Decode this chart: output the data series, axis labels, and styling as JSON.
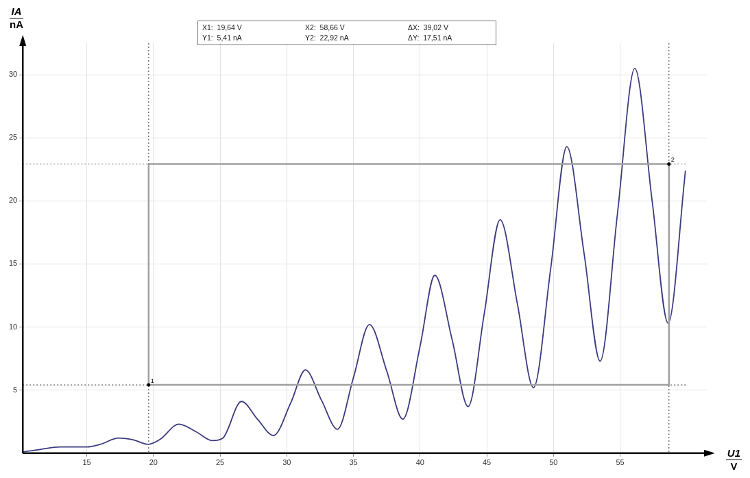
{
  "chart_data": {
    "type": "line",
    "xlabel": "U1\nV",
    "ylabel": "IA\nnA",
    "x": [
      10.2,
      11.5,
      13.0,
      15.0,
      16.0,
      17.4,
      18.5,
      19.6,
      20.5,
      21.9,
      23.2,
      24.4,
      25.2,
      26.6,
      27.8,
      29.0,
      30.3,
      31.4,
      32.6,
      33.8,
      35.0,
      36.2,
      37.5,
      38.7,
      40.0,
      41.1,
      42.4,
      43.6,
      44.8,
      46.0,
      47.3,
      48.5,
      49.8,
      51.0,
      52.3,
      53.5,
      54.8,
      56.1,
      57.4,
      58.6,
      59.9
    ],
    "series": [
      {
        "color": "#3b3b80",
        "values": [
          0.1,
          0.3,
          0.5,
          0.5,
          0.7,
          1.2,
          1.05,
          0.7,
          1.1,
          2.3,
          1.7,
          1.0,
          1.2,
          4.1,
          2.7,
          1.4,
          4.0,
          6.6,
          4.2,
          1.9,
          6.0,
          10.2,
          6.5,
          2.7,
          8.5,
          14.1,
          9.0,
          3.7,
          11.0,
          18.5,
          11.8,
          5.2,
          14.7,
          24.3,
          15.8,
          7.3,
          19.0,
          30.5,
          20.0,
          10.3,
          22.4
        ]
      }
    ],
    "xlim": [
      10.2,
      61.5
    ],
    "ylim": [
      0,
      32.5
    ],
    "xticks": [
      15,
      20,
      25,
      30,
      35,
      40,
      45,
      50,
      55
    ],
    "yticks": [
      5,
      10,
      15,
      20,
      25,
      30
    ],
    "grid": true,
    "legend": false,
    "marker": "none",
    "line_style": "solid",
    "ref_lines": [
      {
        "axis": "x",
        "value": 19.64,
        "line_style": "dotted",
        "color": "#555555"
      },
      {
        "axis": "x",
        "value": 58.66,
        "line_style": "dotted",
        "color": "#555555"
      },
      {
        "axis": "y",
        "value": 5.41,
        "line_style": "dotted",
        "color": "#555555"
      },
      {
        "axis": "y",
        "value": 22.92,
        "line_style": "dotted",
        "color": "#555555"
      }
    ],
    "annotations": [
      "X1:  19,64 V",
      "X2:  58,66 V",
      "ΔX:  39,02 V",
      "Y1:  5,41 nA",
      "Y2:  22,92 nA",
      "ΔY:  17,51 nA",
      {
        "text": "1",
        "x": 19.64,
        "y": 5.41
      },
      {
        "text": "2",
        "x": 58.66,
        "y": 22.92
      }
    ]
  }
}
